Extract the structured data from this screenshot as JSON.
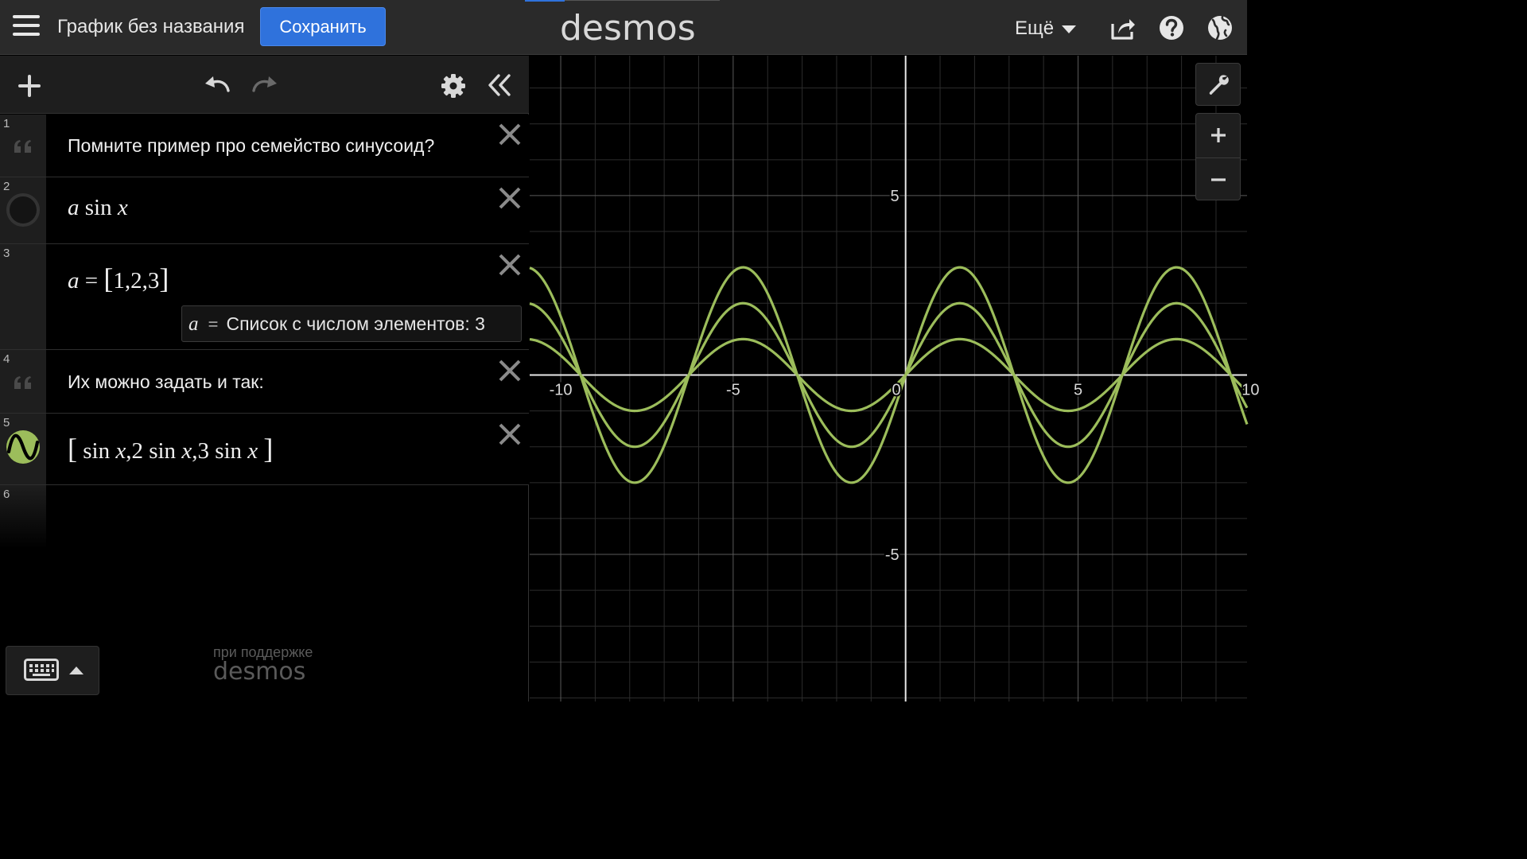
{
  "header": {
    "title": "График без названия",
    "save_label": "Сохранить",
    "logo": "desmos",
    "more_label": "Ещё"
  },
  "expressions": {
    "rows": [
      {
        "num": "1",
        "type": "note",
        "text": "Помните пример про семейство синусоид?"
      },
      {
        "num": "2",
        "type": "expression",
        "var": "a",
        "fn": "sin",
        "arg": "x"
      },
      {
        "num": "3",
        "type": "expression",
        "lhs": "a",
        "eq": "=",
        "open": "[",
        "list": "1,2,3",
        "close": "]",
        "info": {
          "var": "a",
          "eq": "=",
          "text": "Список с числом элементов: 3"
        }
      },
      {
        "num": "4",
        "type": "note",
        "text": "Их можно задать и так:"
      },
      {
        "num": "5",
        "type": "expression",
        "open": "[",
        "close": "]",
        "terms": [
          {
            "coef": "",
            "fn": "sin",
            "arg": "x",
            "sep": ","
          },
          {
            "coef": "2",
            "fn": "sin",
            "arg": "x",
            "sep": ","
          },
          {
            "coef": "3",
            "fn": "sin",
            "arg": "x",
            "sep": ""
          }
        ]
      },
      {
        "num": "6",
        "type": "empty"
      }
    ]
  },
  "footer": {
    "powered_by": "при поддержке",
    "brand": "desmos"
  },
  "colors": {
    "accent": "#2f72dc",
    "curve": "#9cbd5b",
    "header_bg": "#2a2a2a",
    "panel_bg": "#1e1e1e"
  },
  "icons": [
    "hamburger-icon",
    "share-icon",
    "help-icon",
    "globe-icon",
    "add-icon",
    "undo-icon",
    "redo-icon",
    "settings-icon",
    "collapse-icon",
    "note-icon",
    "close-icon",
    "keyboard-icon",
    "wrench-icon",
    "zoom-in-icon",
    "zoom-out-icon"
  ],
  "chart_data": {
    "type": "line",
    "x_range": [
      -10.9,
      9.9
    ],
    "y_range": [
      -9.1,
      8.9
    ],
    "grid": true,
    "x_ticks": [
      {
        "value": -10,
        "label": "-10"
      },
      {
        "value": -5,
        "label": "-5"
      },
      {
        "value": 0,
        "label": "0"
      },
      {
        "value": 5,
        "label": "5"
      },
      {
        "value": 10,
        "label": "10"
      }
    ],
    "y_ticks": [
      {
        "value": 5,
        "label": "5"
      },
      {
        "value": -5,
        "label": "-5"
      }
    ],
    "series": [
      {
        "function": "sin x",
        "amplitude": 1
      },
      {
        "function": "2 sin x",
        "amplitude": 2
      },
      {
        "function": "3 sin x",
        "amplitude": 3
      }
    ]
  }
}
